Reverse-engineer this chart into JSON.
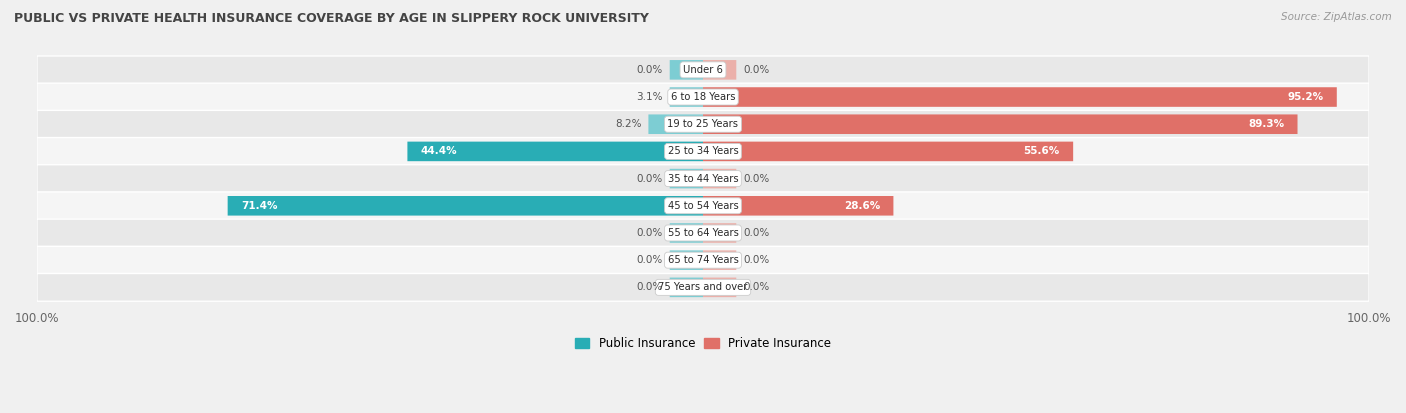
{
  "title": "PUBLIC VS PRIVATE HEALTH INSURANCE COVERAGE BY AGE IN SLIPPERY ROCK UNIVERSITY",
  "source": "Source: ZipAtlas.com",
  "categories": [
    "Under 6",
    "6 to 18 Years",
    "19 to 25 Years",
    "25 to 34 Years",
    "35 to 44 Years",
    "45 to 54 Years",
    "55 to 64 Years",
    "65 to 74 Years",
    "75 Years and over"
  ],
  "public_values": [
    0.0,
    3.1,
    8.2,
    44.4,
    0.0,
    71.4,
    0.0,
    0.0,
    0.0
  ],
  "private_values": [
    0.0,
    95.2,
    89.3,
    55.6,
    0.0,
    28.6,
    0.0,
    0.0,
    0.0
  ],
  "public_color_strong": "#29adb5",
  "public_color_light": "#7dcdd3",
  "private_color_strong": "#e07068",
  "private_color_light": "#ebb0aa",
  "bg_color": "#f0f0f0",
  "row_bg_even": "#e8e8e8",
  "row_bg_odd": "#f5f5f5",
  "title_color": "#444444",
  "label_color": "#555555",
  "tick_label_color": "#666666",
  "legend_public": "Public Insurance",
  "legend_private": "Private Insurance",
  "x_left_label": "100.0%",
  "x_right_label": "100.0%",
  "max_val": 100.0,
  "min_stub": 5.0
}
